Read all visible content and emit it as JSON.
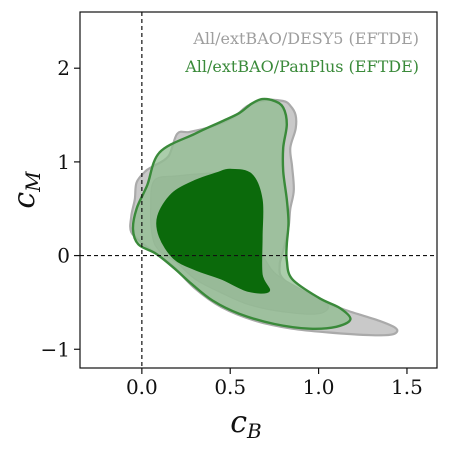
{
  "chart_data": {
    "type": "contour",
    "xlabel": "c",
    "xlabel_sub": "B",
    "ylabel": "c",
    "ylabel_sub": "M",
    "xlim": [
      -0.35,
      1.67
    ],
    "ylim": [
      -1.2,
      2.6
    ],
    "x_ticks": [
      0.0,
      0.5,
      1.0,
      1.5
    ],
    "x_tick_labels": [
      "0.0",
      "0.5",
      "1.0",
      "1.5"
    ],
    "y_ticks": [
      -1,
      0,
      1,
      2
    ],
    "y_tick_labels": [
      "−1",
      "0",
      "1",
      "2"
    ],
    "reference_lines": {
      "x": 0,
      "y": 0,
      "style": "dashed"
    },
    "legend_position": "top-right",
    "series": [
      {
        "name": "All/extBAO/DESY5 (EFTDE)",
        "color": "#9e9e9e",
        "levels": [
          {
            "level": "95%",
            "contour": [
              [
                0.02,
                0.9
              ],
              [
                0.06,
                0.95
              ],
              [
                0.15,
                1.06
              ],
              [
                0.2,
                1.3
              ],
              [
                0.27,
                1.32
              ],
              [
                0.4,
                1.38
              ],
              [
                0.52,
                1.48
              ],
              [
                0.6,
                1.6
              ],
              [
                0.7,
                1.66
              ],
              [
                0.8,
                1.65
              ],
              [
                0.84,
                1.6
              ],
              [
                0.87,
                1.5
              ],
              [
                0.87,
                1.35
              ],
              [
                0.84,
                1.15
              ],
              [
                0.85,
                0.95
              ],
              [
                0.86,
                0.7
              ],
              [
                0.84,
                0.5
              ],
              [
                0.83,
                0.3
              ],
              [
                0.8,
                0.05
              ],
              [
                0.78,
                -0.1
              ],
              [
                0.8,
                -0.25
              ],
              [
                0.95,
                -0.43
              ],
              [
                1.15,
                -0.58
              ],
              [
                1.35,
                -0.7
              ],
              [
                1.44,
                -0.78
              ],
              [
                1.42,
                -0.84
              ],
              [
                1.3,
                -0.85
              ],
              [
                1.05,
                -0.82
              ],
              [
                0.85,
                -0.78
              ],
              [
                0.65,
                -0.7
              ],
              [
                0.45,
                -0.55
              ],
              [
                0.3,
                -0.35
              ],
              [
                0.18,
                -0.12
              ],
              [
                0.08,
                0.02
              ],
              [
                0.01,
                0.12
              ],
              [
                -0.06,
                0.25
              ],
              [
                -0.06,
                0.42
              ],
              [
                -0.04,
                0.6
              ],
              [
                -0.03,
                0.78
              ]
            ]
          },
          {
            "level": "68%",
            "contour": [
              [
                0.07,
                0.8
              ],
              [
                0.2,
                0.85
              ],
              [
                0.45,
                0.88
              ],
              [
                0.62,
                0.8
              ],
              [
                0.66,
                0.5
              ],
              [
                0.68,
                0.3
              ],
              [
                0.66,
                0.1
              ],
              [
                0.7,
                -0.05
              ],
              [
                0.76,
                -0.2
              ],
              [
                0.9,
                -0.36
              ],
              [
                1.05,
                -0.52
              ],
              [
                1.0,
                -0.62
              ],
              [
                0.8,
                -0.6
              ],
              [
                0.6,
                -0.52
              ],
              [
                0.43,
                -0.38
              ],
              [
                0.3,
                -0.25
              ],
              [
                0.2,
                -0.08
              ],
              [
                0.1,
                0.05
              ],
              [
                0.06,
                0.2
              ],
              [
                0.05,
                0.5
              ]
            ]
          }
        ]
      },
      {
        "name": "All/extBAO/PanPlus (EFTDE)",
        "color": "#3a8a3a",
        "levels": [
          {
            "level": "95%",
            "contour": [
              [
                0.1,
                1.1
              ],
              [
                0.3,
                1.3
              ],
              [
                0.45,
                1.43
              ],
              [
                0.55,
                1.52
              ],
              [
                0.62,
                1.62
              ],
              [
                0.68,
                1.67
              ],
              [
                0.75,
                1.65
              ],
              [
                0.8,
                1.58
              ],
              [
                0.82,
                1.4
              ],
              [
                0.8,
                1.15
              ],
              [
                0.8,
                0.9
              ],
              [
                0.82,
                0.6
              ],
              [
                0.83,
                0.35
              ],
              [
                0.82,
                0.12
              ],
              [
                0.82,
                -0.05
              ],
              [
                0.85,
                -0.25
              ],
              [
                1.0,
                -0.45
              ],
              [
                1.12,
                -0.56
              ],
              [
                1.18,
                -0.68
              ],
              [
                1.1,
                -0.76
              ],
              [
                0.95,
                -0.78
              ],
              [
                0.75,
                -0.73
              ],
              [
                0.55,
                -0.62
              ],
              [
                0.4,
                -0.48
              ],
              [
                0.28,
                -0.3
              ],
              [
                0.18,
                -0.13
              ],
              [
                0.08,
                0.02
              ],
              [
                -0.02,
                0.12
              ],
              [
                -0.05,
                0.28
              ],
              [
                -0.03,
                0.5
              ],
              [
                0.03,
                0.75
              ]
            ]
          },
          {
            "level": "68%",
            "contour": [
              [
                0.17,
                0.66
              ],
              [
                0.3,
                0.8
              ],
              [
                0.42,
                0.88
              ],
              [
                0.5,
                0.92
              ],
              [
                0.62,
                0.87
              ],
              [
                0.68,
                0.6
              ],
              [
                0.68,
                0.2
              ],
              [
                0.68,
                -0.2
              ],
              [
                0.72,
                -0.38
              ],
              [
                0.6,
                -0.38
              ],
              [
                0.45,
                -0.25
              ],
              [
                0.3,
                -0.15
              ],
              [
                0.18,
                -0.03
              ],
              [
                0.1,
                0.2
              ],
              [
                0.09,
                0.42
              ]
            ]
          }
        ]
      }
    ]
  }
}
